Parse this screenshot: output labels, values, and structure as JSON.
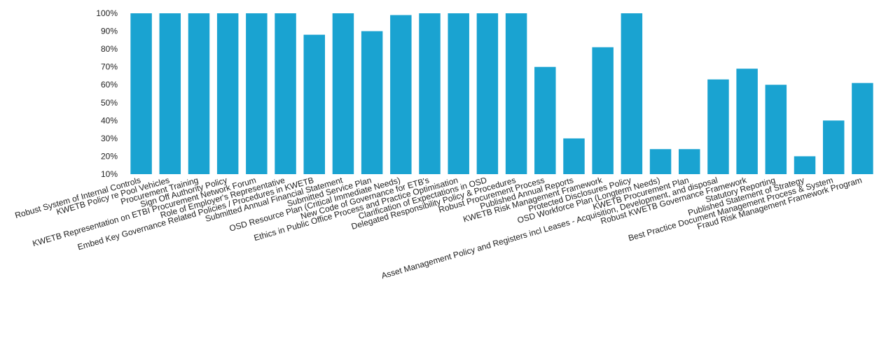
{
  "chart_data": {
    "type": "bar",
    "title": "",
    "xlabel": "",
    "ylabel": "",
    "ylim": [
      10,
      100
    ],
    "y_ticks": [
      "10%",
      "20%",
      "30%",
      "40%",
      "50%",
      "60%",
      "70%",
      "80%",
      "90%",
      "100%"
    ],
    "grid": false,
    "legend": "none",
    "bar_color": "#1aa3d1",
    "categories": [
      "Robust System of Internal Controls",
      "KWETB Policy re Pool Vehicles",
      "Procurement Training",
      "Sign Off Authority Policy",
      "KWETB Representation on ETBI Procurement Network Forum",
      "Role of Employer's Representative",
      "Embed Key Governance Related Policies / Procedures in KWETB",
      "Submitted Annual Financial Statement",
      "Submitted Service Plan",
      "OSD Resource Plan (Critical Immediate Needs)",
      "New Code of Governance for ETB's",
      "Ethics in Public Office Process and Practice Optimisation",
      "Clarification of Expectations in OSD",
      "Delegated Responsibility Policy & Procedures",
      "Robust Procurement Process",
      "Published Annual Reports",
      "KWETB Risk Management Framework",
      "Protected Disclosures Policy",
      "OSD Workforce Plan (Longterm Needs)",
      "KWETB Procurement Plan",
      "Asset Management Policy and Registers incl Leases - Acquisition, Development, and disposal",
      "Robust KWETB Governance Framework",
      "Statutory Reporting",
      "Published Statement of Strategy",
      "Best Practice Document Management Process & System",
      "Fraud Risk Management Framework Program"
    ],
    "values": [
      100,
      100,
      100,
      100,
      100,
      100,
      88,
      100,
      90,
      99,
      100,
      100,
      100,
      100,
      70,
      30,
      81,
      100,
      24,
      24,
      63,
      69,
      60,
      20,
      40,
      61
    ]
  }
}
